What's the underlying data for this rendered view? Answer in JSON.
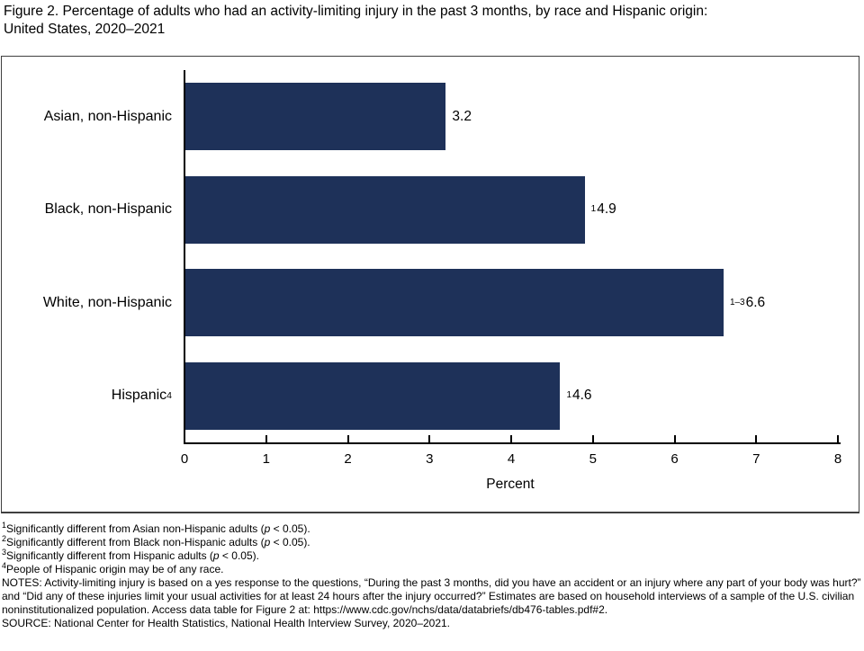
{
  "title": {
    "line1": "Figure 2. Percentage of adults who had an activity-limiting injury in the past 3 months, by race and Hispanic origin:",
    "line2": "United States, 2020–2021"
  },
  "chart_data": {
    "type": "bar",
    "orientation": "horizontal",
    "title": "Figure 2. Percentage of adults who had an activity-limiting injury in the past 3 months, by race and Hispanic origin: United States, 2020–2021",
    "categories": [
      "Asian, non-Hispanic",
      "Black, non-Hispanic",
      "White, non-Hispanic",
      "Hispanic"
    ],
    "category_superscripts": [
      "",
      "",
      "",
      "4"
    ],
    "values": [
      3.2,
      4.9,
      6.6,
      4.6
    ],
    "value_label_superscripts": [
      "",
      "1",
      "1–3",
      "1"
    ],
    "value_labels": [
      "3.2",
      "4.9",
      "6.6",
      "4.6"
    ],
    "xlabel": "Percent",
    "xlim": [
      0,
      8
    ],
    "xticks": [
      0,
      1,
      2,
      3,
      4,
      5,
      6,
      7,
      8
    ],
    "grid": false,
    "legend": "none",
    "bar_color": "#1e3159"
  },
  "footnotes": [
    {
      "sup": "1",
      "parts": [
        "Significantly different from Asian non-Hispanic adults (",
        "p",
        " < 0.05)."
      ]
    },
    {
      "sup": "2",
      "parts": [
        "Significantly different from Black non-Hispanic adults (",
        "p",
        " < 0.05)."
      ]
    },
    {
      "sup": "3",
      "parts": [
        "Significantly different from Hispanic adults (",
        "p",
        " < 0.05)."
      ]
    },
    {
      "sup": "4",
      "parts": [
        "People of Hispanic origin may be of any race."
      ]
    }
  ],
  "notes": "NOTES: Activity-limiting injury is based on a yes response to the questions, “During the past 3 months, did you have an accident or an injury where any part of your body was hurt?” and “Did any of these injuries limit your usual activities for at least 24 hours after the injury occurred?” Estimates are based on household interviews of a sample of the U.S. civilian noninstitutionalized population. Access data table for Figure 2 at: https://www.cdc.gov/nchs/data/databriefs/db476-tables.pdf#2.",
  "source": "SOURCE: National Center for Health Statistics, National Health Interview Survey, 2020–2021."
}
